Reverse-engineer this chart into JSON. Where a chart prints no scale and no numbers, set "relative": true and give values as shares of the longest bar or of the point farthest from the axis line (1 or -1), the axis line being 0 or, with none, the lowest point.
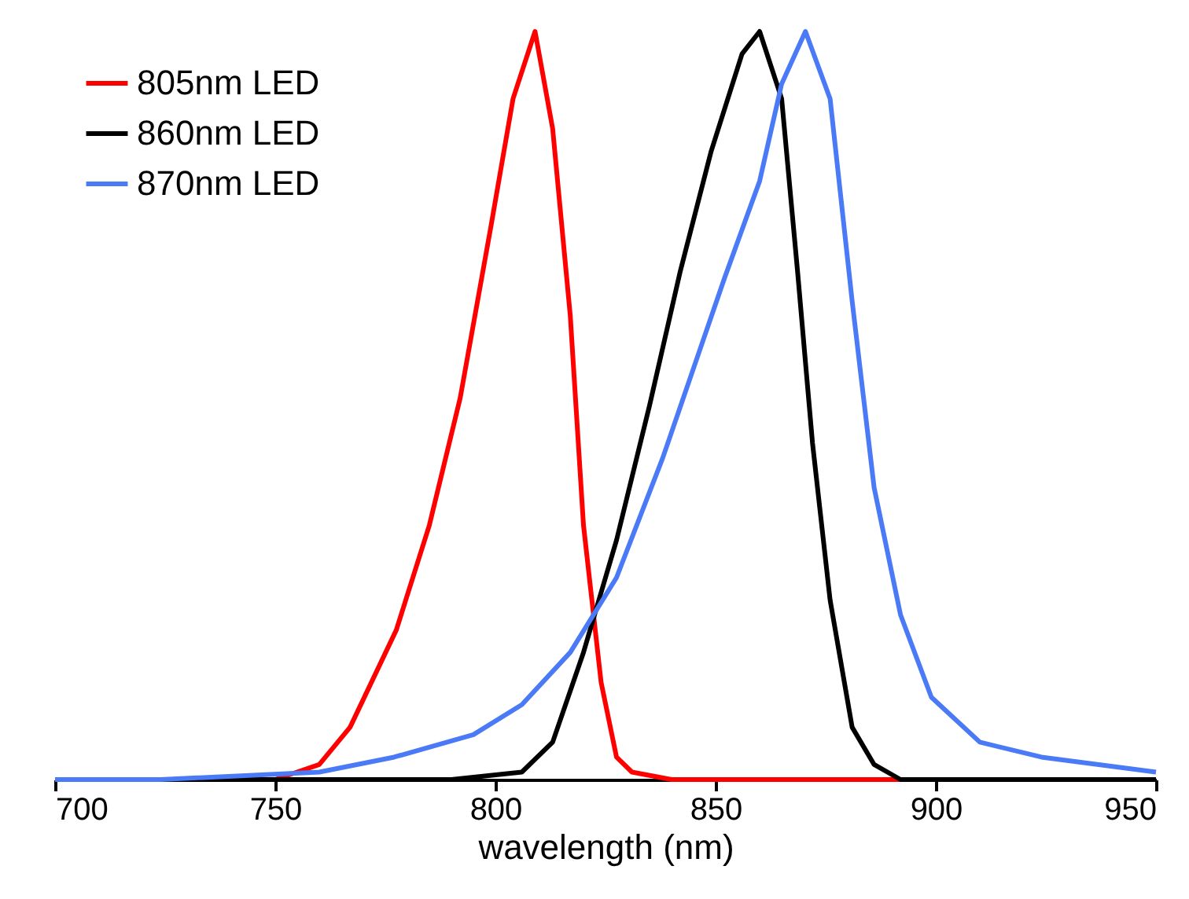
{
  "chart_data": {
    "type": "line",
    "xlabel": "wavelength (nm)",
    "xlim": [
      700,
      950
    ],
    "xticks": [
      700,
      750,
      800,
      850,
      900,
      950
    ],
    "relative": true,
    "grid": false,
    "legend": "top left",
    "series": [
      {
        "name": "805nm LED",
        "color": "#ff0000",
        "x": [
          700,
          750,
          760,
          767,
          777.5,
          785,
          792,
          799,
          804,
          809,
          813,
          817,
          820,
          824,
          827.5,
          831,
          840,
          900,
          950
        ],
        "values": [
          0,
          0,
          0.02,
          0.07,
          0.2,
          0.34,
          0.51,
          0.74,
          0.91,
          1,
          0.87,
          0.62,
          0.34,
          0.13,
          0.03,
          0.01,
          0,
          0,
          0
        ]
      },
      {
        "name": "860nm LED",
        "color": "#000000",
        "x": [
          700,
          790,
          806,
          813,
          820,
          827.5,
          835,
          842,
          849,
          856,
          860,
          865,
          868.6,
          872,
          876,
          881,
          886,
          892,
          950
        ],
        "values": [
          0,
          0,
          0.01,
          0.05,
          0.17,
          0.32,
          0.5,
          0.68,
          0.84,
          0.97,
          1,
          0.91,
          0.68,
          0.45,
          0.24,
          0.07,
          0.02,
          0,
          0
        ]
      },
      {
        "name": "870nm  LED",
        "color": "#4a7af5",
        "x": [
          700,
          724,
          760,
          777,
          795,
          806,
          817,
          827.5,
          838,
          845,
          852,
          860,
          865,
          870.4,
          876,
          881,
          886,
          892,
          899,
          910,
          924,
          950
        ],
        "values": [
          0,
          0,
          0.01,
          0.03,
          0.06,
          0.1,
          0.17,
          0.27,
          0.43,
          0.55,
          0.67,
          0.8,
          0.93,
          1,
          0.91,
          0.64,
          0.39,
          0.22,
          0.11,
          0.05,
          0.03,
          0.01
        ]
      }
    ]
  }
}
